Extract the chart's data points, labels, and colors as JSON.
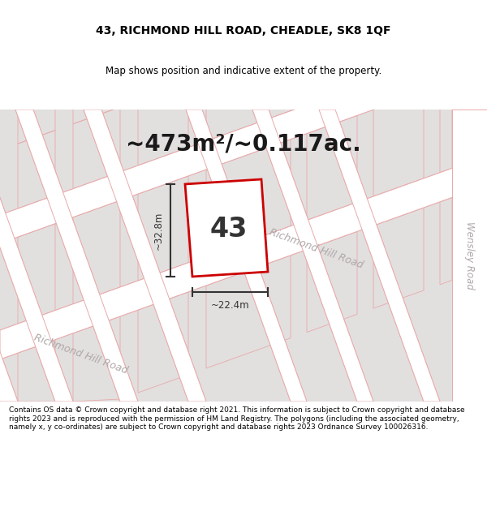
{
  "title": "43, RICHMOND HILL ROAD, CHEADLE, SK8 1QF",
  "subtitle": "Map shows position and indicative extent of the property.",
  "area_label": "~473m²/~0.117ac.",
  "number_label": "43",
  "width_label": "~22.4m",
  "height_label": "~32.8m",
  "map_bg": "#f0eeee",
  "block_fc": "#e2dfdf",
  "block_ec": "#e8aaaa",
  "road_fc": "#ffffff",
  "road_ec": "#e8aaaa",
  "plot_fc": "#ffffff",
  "plot_ec": "#cc0000",
  "plot_lw": 2.0,
  "dim_color": "#333333",
  "label_color": "#b0a8a8",
  "title_fontsize": 10,
  "subtitle_fontsize": 8.5,
  "area_fontsize": 20,
  "number_fontsize": 24,
  "dim_fontsize": 8.5,
  "road_label_fontsize": 9,
  "footnote_fontsize": 6.5,
  "wensley_road_label": "Wensley Road",
  "richmond_hill_road_label1": "Richmond Hill Road",
  "richmond_hill_road_label2": "Richmond Hill Road",
  "footnote": "Contains OS data © Crown copyright and database right 2021. This information is subject to Crown copyright and database rights 2023 and is reproduced with the permission of HM Land Registry. The polygons (including the associated geometry, namely x, y co-ordinates) are subject to Crown copyright and database rights 2023 Ordnance Survey 100026316."
}
